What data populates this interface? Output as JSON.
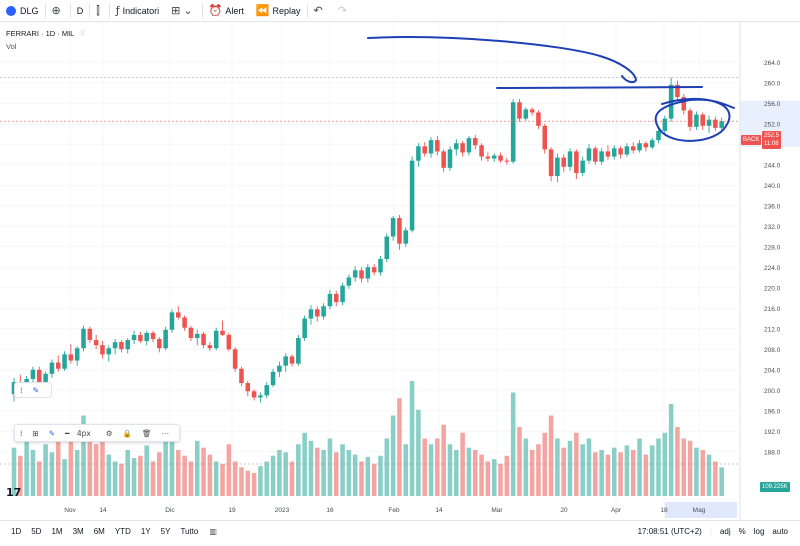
{
  "toolbar": {
    "symbol_label": "DLG",
    "interval_label": "D",
    "indicators_label": "Indicatori",
    "alert_label": "Alert",
    "replay_label": "Replay"
  },
  "legend": {
    "title_line": "FERRARI · 1D · MIL",
    "volume_label": "Vol"
  },
  "colors": {
    "up": "#26a69a",
    "down": "#ef5350",
    "vol_up": "#89cfc8",
    "vol_down": "#f4a5a2",
    "annotation": "#1f3fb5",
    "highlight_band": "#d6e2fb"
  },
  "drawing_toolbar": {
    "line_width_label": "4px"
  },
  "bottom_bar": {
    "ranges": [
      "1D",
      "5D",
      "1M",
      "3M",
      "6M",
      "YTD",
      "1Y",
      "5Y",
      "Tutto"
    ],
    "clock": "17:08:51 (UTC+2)",
    "adj_label": "adj",
    "percent_label": "%",
    "log_label": "log",
    "auto_label": "auto"
  },
  "price_tags": {
    "last_price": "252.5",
    "last_price_sub": "11:08",
    "marker_label": "BACK",
    "volume_tag": "109.225K"
  },
  "chart_data": {
    "type": "candlestick",
    "title": "FERRARI · 1D · MIL",
    "y_ticks": [
      "264.0",
      "260.0",
      "256.0",
      "252.0",
      "248.0",
      "244.0",
      "240.0",
      "236.0",
      "232.0",
      "228.0",
      "224.0",
      "220.0",
      "216.0",
      "212.0",
      "208.0",
      "204.0",
      "200.0",
      "196.0",
      "192.0",
      "188.0"
    ],
    "ylim": [
      186,
      266
    ],
    "x_ticks": [
      "Nov",
      "14",
      "Dic",
      "19",
      "2023",
      "16",
      "Feb",
      "14",
      "Mar",
      "20",
      "Apr",
      "18",
      "Mag"
    ],
    "grid": true,
    "annotations": [
      "arrow-stroke",
      "horizontal-line",
      "circled-region"
    ],
    "candles": [
      [
        199.2,
        202.4,
        197.8,
        201.6
      ],
      [
        201.6,
        203.0,
        199.5,
        200.2
      ],
      [
        200.2,
        202.8,
        199.4,
        202.2
      ],
      [
        202.2,
        204.6,
        201.4,
        204.0
      ],
      [
        204.0,
        204.6,
        200.0,
        200.8
      ],
      [
        200.8,
        203.6,
        199.0,
        203.2
      ],
      [
        203.2,
        206.0,
        202.4,
        205.4
      ],
      [
        205.4,
        206.8,
        203.6,
        204.2
      ],
      [
        204.2,
        207.6,
        203.8,
        207.0
      ],
      [
        207.0,
        209.0,
        205.2,
        205.8
      ],
      [
        205.8,
        208.6,
        204.8,
        208.2
      ],
      [
        208.2,
        212.6,
        207.6,
        212.0
      ],
      [
        212.0,
        212.4,
        209.2,
        209.8
      ],
      [
        209.8,
        210.8,
        208.0,
        208.8
      ],
      [
        208.8,
        209.6,
        206.2,
        207.0
      ],
      [
        207.0,
        208.8,
        205.6,
        208.2
      ],
      [
        208.2,
        210.0,
        207.0,
        209.4
      ],
      [
        209.4,
        209.8,
        207.4,
        208.0
      ],
      [
        208.0,
        210.2,
        207.2,
        209.8
      ],
      [
        209.8,
        211.6,
        209.0,
        210.8
      ],
      [
        210.8,
        211.4,
        209.2,
        209.6
      ],
      [
        209.6,
        211.6,
        208.8,
        211.2
      ],
      [
        211.2,
        211.6,
        209.4,
        210.0
      ],
      [
        210.0,
        210.4,
        207.4,
        208.2
      ],
      [
        208.2,
        212.4,
        207.8,
        211.8
      ],
      [
        211.8,
        215.8,
        211.2,
        215.2
      ],
      [
        215.2,
        216.4,
        213.8,
        214.2
      ],
      [
        214.2,
        214.6,
        211.6,
        212.2
      ],
      [
        212.2,
        212.6,
        209.6,
        210.2
      ],
      [
        210.2,
        211.8,
        208.8,
        211.0
      ],
      [
        211.0,
        211.4,
        208.2,
        208.8
      ],
      [
        208.8,
        209.4,
        207.6,
        208.2
      ],
      [
        208.2,
        212.2,
        207.8,
        211.6
      ],
      [
        211.6,
        213.6,
        210.6,
        210.8
      ],
      [
        210.8,
        211.2,
        207.6,
        208.0
      ],
      [
        208.0,
        208.4,
        203.6,
        204.2
      ],
      [
        204.2,
        204.6,
        200.8,
        201.4
      ],
      [
        201.4,
        201.8,
        198.8,
        199.8
      ],
      [
        199.8,
        200.2,
        198.0,
        198.6
      ],
      [
        198.6,
        199.6,
        197.6,
        199.0
      ],
      [
        199.0,
        201.6,
        198.4,
        201.0
      ],
      [
        201.0,
        204.2,
        200.6,
        203.6
      ],
      [
        203.6,
        205.6,
        202.6,
        204.8
      ],
      [
        204.8,
        207.2,
        203.6,
        206.6
      ],
      [
        206.6,
        207.0,
        204.6,
        205.2
      ],
      [
        205.2,
        210.8,
        204.8,
        210.2
      ],
      [
        210.2,
        214.6,
        209.6,
        214.0
      ],
      [
        214.0,
        216.6,
        212.8,
        215.8
      ],
      [
        215.8,
        216.4,
        213.4,
        214.4
      ],
      [
        214.4,
        217.0,
        213.8,
        216.4
      ],
      [
        216.4,
        219.6,
        215.8,
        218.8
      ],
      [
        218.8,
        219.4,
        216.4,
        217.2
      ],
      [
        217.2,
        221.0,
        216.6,
        220.4
      ],
      [
        220.4,
        222.6,
        219.8,
        222.0
      ],
      [
        222.0,
        224.2,
        221.2,
        223.4
      ],
      [
        223.4,
        224.0,
        221.0,
        221.8
      ],
      [
        221.8,
        224.6,
        221.0,
        224.0
      ],
      [
        224.0,
        224.6,
        222.4,
        223.0
      ],
      [
        223.0,
        226.2,
        222.4,
        225.6
      ],
      [
        225.6,
        230.6,
        225.0,
        230.0
      ],
      [
        230.0,
        234.0,
        229.2,
        233.6
      ],
      [
        233.6,
        234.2,
        227.4,
        228.6
      ],
      [
        228.6,
        231.8,
        228.0,
        231.2
      ],
      [
        231.2,
        245.6,
        230.8,
        244.8
      ],
      [
        244.8,
        248.2,
        243.6,
        247.6
      ],
      [
        247.6,
        248.4,
        245.6,
        246.2
      ],
      [
        246.2,
        249.4,
        245.4,
        248.8
      ],
      [
        248.8,
        249.6,
        245.8,
        246.6
      ],
      [
        246.6,
        247.0,
        242.6,
        243.4
      ],
      [
        243.4,
        247.6,
        242.8,
        247.0
      ],
      [
        247.0,
        249.0,
        245.8,
        248.2
      ],
      [
        248.2,
        248.6,
        245.6,
        246.4
      ],
      [
        246.4,
        249.6,
        245.8,
        249.2
      ],
      [
        249.2,
        249.8,
        247.0,
        247.8
      ],
      [
        247.8,
        248.2,
        244.8,
        245.6
      ],
      [
        245.6,
        246.4,
        244.6,
        245.2
      ],
      [
        245.2,
        246.2,
        244.6,
        245.8
      ],
      [
        245.8,
        246.4,
        244.4,
        244.8
      ],
      [
        244.8,
        245.4,
        244.0,
        244.6
      ],
      [
        244.6,
        256.8,
        244.2,
        256.2
      ],
      [
        256.2,
        256.8,
        252.4,
        253.0
      ],
      [
        253.0,
        255.2,
        252.6,
        254.8
      ],
      [
        254.8,
        255.2,
        253.6,
        254.2
      ],
      [
        254.2,
        254.6,
        251.0,
        251.6
      ],
      [
        251.6,
        252.0,
        246.2,
        247.0
      ],
      [
        247.0,
        247.4,
        240.8,
        241.8
      ],
      [
        241.8,
        246.2,
        240.6,
        245.4
      ],
      [
        245.4,
        246.0,
        242.6,
        243.6
      ],
      [
        243.6,
        247.2,
        242.8,
        246.6
      ],
      [
        246.6,
        247.0,
        241.2,
        242.4
      ],
      [
        242.4,
        245.6,
        241.8,
        244.8
      ],
      [
        244.8,
        248.0,
        244.2,
        247.2
      ],
      [
        247.2,
        247.6,
        244.0,
        244.6
      ],
      [
        244.6,
        247.2,
        244.0,
        246.6
      ],
      [
        246.6,
        247.8,
        245.0,
        245.6
      ],
      [
        245.6,
        247.8,
        245.0,
        247.2
      ],
      [
        247.2,
        247.6,
        245.2,
        246.0
      ],
      [
        246.0,
        248.2,
        245.6,
        247.6
      ],
      [
        247.6,
        248.4,
        246.2,
        246.8
      ],
      [
        246.8,
        248.8,
        246.4,
        248.2
      ],
      [
        248.2,
        248.6,
        246.6,
        247.4
      ],
      [
        247.4,
        249.2,
        247.0,
        248.8
      ],
      [
        248.8,
        251.2,
        248.2,
        250.6
      ],
      [
        250.6,
        253.6,
        250.0,
        253.0
      ],
      [
        253.0,
        261.0,
        252.4,
        259.6
      ],
      [
        259.6,
        260.4,
        256.4,
        257.2
      ],
      [
        257.2,
        257.8,
        253.8,
        254.6
      ],
      [
        254.6,
        255.0,
        250.6,
        251.4
      ],
      [
        251.4,
        254.4,
        250.8,
        253.8
      ],
      [
        253.8,
        254.2,
        250.8,
        251.6
      ],
      [
        251.6,
        253.6,
        250.2,
        252.8
      ],
      [
        252.8,
        253.4,
        250.6,
        251.2
      ],
      [
        251.2,
        253.2,
        250.8,
        252.5
      ]
    ],
    "volume_relative": [
      0.42,
      0.35,
      0.5,
      0.4,
      0.3,
      0.45,
      0.38,
      0.55,
      0.32,
      0.6,
      0.4,
      0.7,
      0.5,
      0.45,
      0.52,
      0.36,
      0.3,
      0.28,
      0.4,
      0.33,
      0.35,
      0.44,
      0.3,
      0.38,
      0.5,
      0.62,
      0.4,
      0.35,
      0.3,
      0.48,
      0.42,
      0.36,
      0.3,
      0.28,
      0.45,
      0.3,
      0.25,
      0.22,
      0.2,
      0.26,
      0.3,
      0.35,
      0.4,
      0.38,
      0.3,
      0.45,
      0.55,
      0.48,
      0.42,
      0.4,
      0.5,
      0.38,
      0.45,
      0.4,
      0.36,
      0.3,
      0.34,
      0.28,
      0.35,
      0.5,
      0.7,
      0.85,
      0.45,
      1.0,
      0.75,
      0.5,
      0.45,
      0.5,
      0.62,
      0.45,
      0.4,
      0.55,
      0.42,
      0.4,
      0.36,
      0.3,
      0.32,
      0.28,
      0.35,
      0.9,
      0.6,
      0.5,
      0.4,
      0.45,
      0.55,
      0.7,
      0.5,
      0.42,
      0.48,
      0.55,
      0.45,
      0.5,
      0.38,
      0.4,
      0.36,
      0.42,
      0.38,
      0.44,
      0.4,
      0.5,
      0.36,
      0.44,
      0.5,
      0.55,
      0.8,
      0.6,
      0.5,
      0.48,
      0.42,
      0.4,
      0.36,
      0.3,
      0.25
    ]
  }
}
